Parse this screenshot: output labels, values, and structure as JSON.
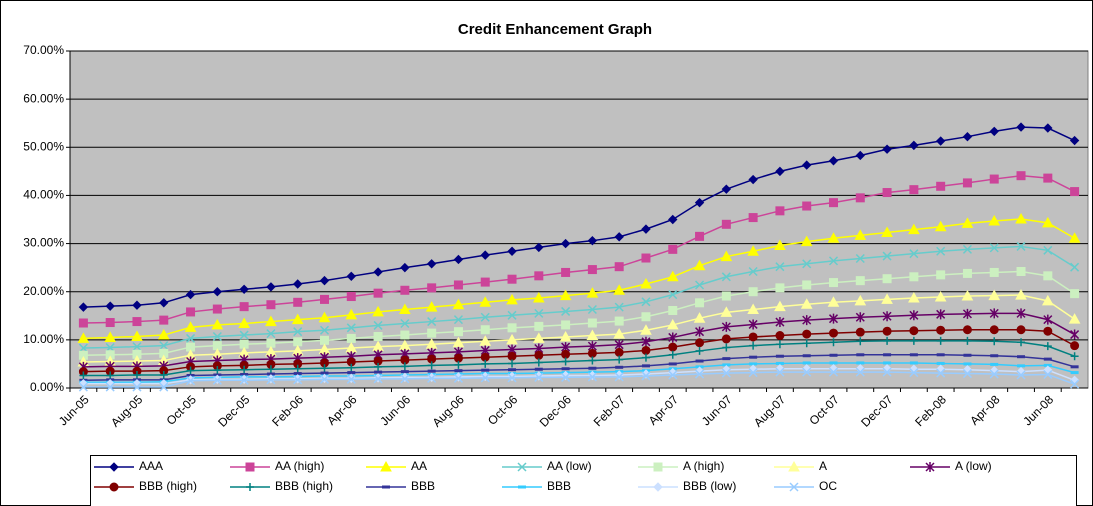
{
  "chart_data": {
    "type": "line",
    "title": "Credit Enhancement Graph",
    "categories": [
      "Jun-05",
      null,
      "Aug-05",
      null,
      "Oct-05",
      null,
      "Dec-05",
      null,
      "Feb-06",
      null,
      "Apr-06",
      null,
      "Jun-06",
      null,
      "Aug-06",
      null,
      "Oct-06",
      null,
      "Dec-06",
      null,
      "Feb-07",
      null,
      "Apr-07",
      null,
      "Jun-07",
      null,
      "Aug-07",
      null,
      "Oct-07",
      null,
      "Dec-07",
      null,
      "Feb-08",
      null,
      "Apr-08",
      null,
      "Jun-08",
      null
    ],
    "ylim": [
      0,
      70
    ],
    "yticks": [
      {
        "value": 0,
        "label": "0.00%"
      },
      {
        "value": 10,
        "label": "10.00%"
      },
      {
        "value": 20,
        "label": "20.00%"
      },
      {
        "value": 30,
        "label": "30.00%"
      },
      {
        "value": 40,
        "label": "40.00%"
      },
      {
        "value": 50,
        "label": "50.00%"
      },
      {
        "value": 60,
        "label": "60.00%"
      },
      {
        "value": 70,
        "label": "70.00%"
      }
    ],
    "grid": true,
    "legend": "bottom",
    "series": [
      {
        "name": "AAA",
        "color": "#000080",
        "marker": "diamond",
        "values": [
          16.8,
          17,
          17.2,
          17.7,
          19.4,
          20,
          20.5,
          21,
          21.6,
          22.3,
          23.2,
          24.1,
          25,
          25.8,
          26.7,
          27.6,
          28.4,
          29.2,
          30,
          30.6,
          31.4,
          33,
          35,
          38.5,
          41.3,
          43.3,
          45,
          46.3,
          47.2,
          48.3,
          49.6,
          50.4,
          51.3,
          52.2,
          53.3,
          54.2,
          54,
          51.4
        ]
      },
      {
        "name": "AA (high)",
        "color": "#cc4499",
        "marker": "square",
        "values": [
          13.5,
          13.6,
          13.8,
          14.1,
          15.8,
          16.4,
          16.9,
          17.3,
          17.8,
          18.4,
          19,
          19.7,
          20.3,
          20.8,
          21.4,
          22,
          22.6,
          23.3,
          24,
          24.6,
          25.2,
          27,
          28.8,
          31.5,
          34,
          35.4,
          36.8,
          37.8,
          38.5,
          39.5,
          40.6,
          41.2,
          41.9,
          42.6,
          43.4,
          44.1,
          43.6,
          40.8
        ]
      },
      {
        "name": "AA",
        "color": "#ffff00",
        "marker": "triangle",
        "values": [
          10.3,
          10.5,
          10.7,
          11,
          12.6,
          13.1,
          13.4,
          13.8,
          14.2,
          14.6,
          15.2,
          15.8,
          16.3,
          16.8,
          17.3,
          17.8,
          18.3,
          18.7,
          19.2,
          19.7,
          20.3,
          21.6,
          23.1,
          25.4,
          27.3,
          28.4,
          29.6,
          30.4,
          31.1,
          31.7,
          32.3,
          32.9,
          33.5,
          34.2,
          34.7,
          35.1,
          34.3,
          31.1
        ]
      },
      {
        "name": "AA (low)",
        "color": "#66cccc",
        "marker": "x",
        "values": [
          8.3,
          8.4,
          8.6,
          8.8,
          10.3,
          10.7,
          11,
          11.3,
          11.7,
          12,
          12.5,
          13,
          13.4,
          13.8,
          14.2,
          14.7,
          15.1,
          15.5,
          15.9,
          16.3,
          16.8,
          17.9,
          19.4,
          21.4,
          23.1,
          24.2,
          25.2,
          25.8,
          26.4,
          26.9,
          27.4,
          27.9,
          28.4,
          28.8,
          29.1,
          29.4,
          28.6,
          25.1
        ]
      },
      {
        "name": "A (high)",
        "color": "#ccf0c0",
        "marker": "square",
        "values": [
          6.8,
          6.9,
          7,
          7.2,
          8.5,
          8.8,
          9.1,
          9.3,
          9.6,
          9.9,
          10.3,
          10.7,
          11,
          11.4,
          11.7,
          12.1,
          12.5,
          12.8,
          13.1,
          13.5,
          13.9,
          14.8,
          16.1,
          17.7,
          19.1,
          20,
          20.8,
          21.4,
          21.9,
          22.3,
          22.7,
          23.1,
          23.5,
          23.8,
          24,
          24.2,
          23.3,
          19.6
        ]
      },
      {
        "name": "A",
        "color": "#ffff99",
        "marker": "triangle",
        "values": [
          5.4,
          5.5,
          5.6,
          5.7,
          6.8,
          7,
          7.3,
          7.5,
          7.7,
          8,
          8.3,
          8.6,
          8.8,
          9.1,
          9.4,
          9.7,
          10,
          10.3,
          10.6,
          10.9,
          11.2,
          12,
          13.1,
          14.5,
          15.7,
          16.3,
          16.9,
          17.4,
          17.8,
          18.1,
          18.4,
          18.7,
          18.9,
          19.1,
          19.2,
          19.3,
          18.1,
          14.3
        ]
      },
      {
        "name": "A (low)",
        "color": "#660066",
        "marker": "star",
        "values": [
          4.4,
          4.5,
          4.5,
          4.6,
          5.5,
          5.7,
          5.9,
          6,
          6.2,
          6.4,
          6.6,
          6.9,
          7.1,
          7.3,
          7.5,
          7.8,
          8,
          8.2,
          8.5,
          8.7,
          9,
          9.6,
          10.5,
          11.7,
          12.7,
          13.2,
          13.7,
          14.1,
          14.4,
          14.7,
          14.9,
          15.1,
          15.3,
          15.4,
          15.5,
          15.5,
          14.2,
          11.1
        ]
      },
      {
        "name": "BBB (high)",
        "color": "#800000",
        "marker": "circle",
        "values": [
          3.4,
          3.5,
          3.5,
          3.6,
          4.4,
          4.6,
          4.7,
          4.9,
          5,
          5.2,
          5.4,
          5.6,
          5.8,
          6,
          6.2,
          6.4,
          6.6,
          6.8,
          7,
          7.2,
          7.4,
          7.8,
          8.5,
          9.4,
          10.2,
          10.6,
          10.9,
          11.2,
          11.4,
          11.6,
          11.8,
          11.9,
          12,
          12.1,
          12.1,
          12.1,
          11.8,
          8.8
        ]
      },
      {
        "name": "BBB (high)",
        "color": "#008080",
        "marker": "plus",
        "values": [
          2.6,
          2.6,
          2.7,
          2.7,
          3.6,
          3.7,
          3.8,
          3.9,
          4,
          4.1,
          4.2,
          4.4,
          4.5,
          4.7,
          4.8,
          5,
          5.1,
          5.3,
          5.5,
          5.7,
          5.9,
          6.3,
          6.9,
          7.7,
          8.4,
          8.8,
          9.1,
          9.3,
          9.5,
          9.7,
          9.8,
          9.8,
          9.8,
          9.8,
          9.7,
          9.5,
          8.7,
          6.6
        ]
      },
      {
        "name": "BBB",
        "color": "#333399",
        "marker": "dash",
        "values": [
          1.6,
          1.7,
          1.7,
          1.7,
          2.6,
          2.7,
          2.8,
          2.9,
          3,
          3.1,
          3.2,
          3.3,
          3.4,
          3.5,
          3.6,
          3.7,
          3.8,
          3.9,
          4,
          4.1,
          4.3,
          4.6,
          5,
          5.6,
          6.1,
          6.4,
          6.6,
          6.7,
          6.8,
          6.9,
          6.9,
          6.9,
          6.9,
          6.8,
          6.7,
          6.5,
          6,
          4.4
        ]
      },
      {
        "name": "BBB",
        "color": "#33ccff",
        "marker": "dash",
        "values": [
          1.2,
          1.2,
          1.2,
          1.3,
          2.1,
          2.2,
          2.3,
          2.3,
          2.4,
          2.5,
          2.5,
          2.6,
          2.7,
          2.8,
          2.9,
          3,
          3,
          3.1,
          3.2,
          3.3,
          3.4,
          3.6,
          4,
          4.4,
          4.8,
          5,
          5.1,
          5.2,
          5.2,
          5.2,
          5.2,
          5.2,
          5.1,
          5,
          4.9,
          4.6,
          4.7,
          3.2
        ]
      },
      {
        "name": "BBB (low)",
        "color": "#cce0ff",
        "marker": "diamond",
        "values": [
          0.9,
          0.9,
          0.9,
          0.9,
          1.7,
          1.8,
          1.8,
          1.9,
          1.9,
          2,
          2,
          2.1,
          2.2,
          2.2,
          2.3,
          2.4,
          2.4,
          2.5,
          2.6,
          2.6,
          2.7,
          2.9,
          3.2,
          3.5,
          3.8,
          3.9,
          4,
          4,
          4,
          4,
          4,
          3.9,
          3.9,
          3.8,
          3.6,
          3.4,
          3.7,
          1.6
        ]
      },
      {
        "name": "OC",
        "color": "#99ccff",
        "marker": "x",
        "values": [
          0.2,
          0.2,
          0.2,
          0.2,
          1.5,
          1.6,
          1.6,
          1.7,
          1.7,
          1.8,
          1.8,
          1.9,
          1.9,
          2,
          2,
          2.1,
          2.1,
          2.2,
          2.2,
          2.3,
          2.3,
          2.5,
          2.7,
          2.9,
          3.1,
          3.2,
          3.3,
          3.3,
          3.3,
          3.3,
          3.3,
          3.2,
          3.1,
          3,
          2.9,
          2.7,
          2.8,
          0.8
        ]
      }
    ]
  }
}
